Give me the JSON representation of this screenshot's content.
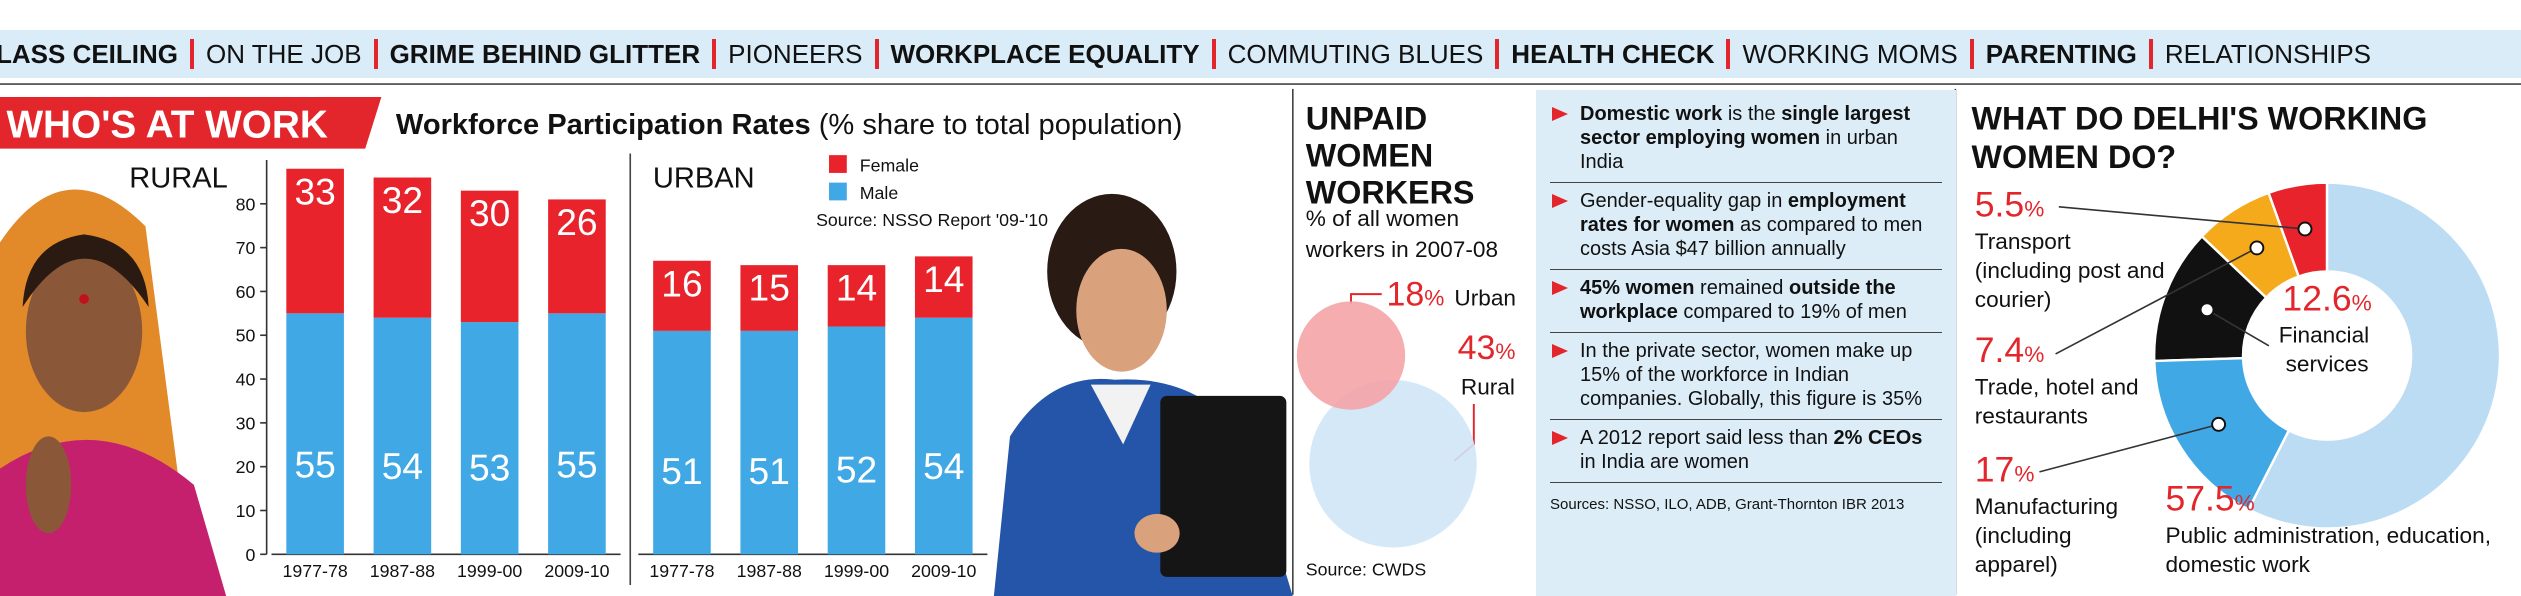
{
  "nav": {
    "items": [
      {
        "text": "LASS CEILING",
        "bold": true
      },
      {
        "text": "ON THE JOB",
        "bold": false
      },
      {
        "text": "GRIME BEHIND GLITTER",
        "bold": true
      },
      {
        "text": "PIONEERS",
        "bold": false
      },
      {
        "text": "WORKPLACE EQUALITY",
        "bold": true
      },
      {
        "text": "COMMUTING BLUES",
        "bold": false
      },
      {
        "text": "HEALTH CHECK",
        "bold": true
      },
      {
        "text": "WORKING MOMS",
        "bold": false
      },
      {
        "text": "PARENTING",
        "bold": true
      },
      {
        "text": "RELATIONSHIPS",
        "bold": false
      }
    ]
  },
  "header": {
    "banner": "WHO'S AT WORK",
    "title": "Workforce Participation Rates",
    "subtitle": "(% share to total population)"
  },
  "facts": {
    "items": [
      [
        {
          "text": "Domestic work",
          "bold": true
        },
        {
          "text": " is the ",
          "bold": false
        },
        {
          "text": "single largest sector employing women",
          "bold": true
        },
        {
          "text": " in urban India",
          "bold": false
        }
      ],
      [
        {
          "text": "Gender-equality gap in ",
          "bold": false
        },
        {
          "text": "employment rates for women",
          "bold": true
        },
        {
          "text": " as compared to men costs Asia $47 billion annually",
          "bold": false
        }
      ],
      [
        {
          "text": "45% women",
          "bold": true
        },
        {
          "text": " remained ",
          "bold": false
        },
        {
          "text": "outside the workplace",
          "bold": true
        },
        {
          "text": " compared to 19% of men",
          "bold": false
        }
      ],
      [
        {
          "text": "In the private sector, women make up 15% of the workforce in Indian companies. Globally, this figure is 35%",
          "bold": false
        }
      ],
      [
        {
          "text": "A 2012 report said less than ",
          "bold": false
        },
        {
          "text": "2% CEOs",
          "bold": true
        },
        {
          "text": " in India are women",
          "bold": false
        }
      ]
    ],
    "source": "Sources: NSSO, ILO, ADB, Grant-Thornton IBR 2013"
  },
  "chart_data": [
    {
      "type": "bar",
      "stacked": true,
      "title": "RURAL",
      "categories": [
        "1977-78",
        "1987-88",
        "1999-00",
        "2009-10"
      ],
      "series": [
        {
          "name": "Male",
          "color": "#41a8e6",
          "values": [
            55,
            54,
            53,
            55
          ]
        },
        {
          "name": "Female",
          "color": "#e8232b",
          "values": [
            33,
            32,
            30,
            26
          ]
        }
      ],
      "ylim": [
        0,
        90
      ],
      "yticks": [
        0,
        10,
        20,
        30,
        40,
        50,
        60,
        70,
        80
      ]
    },
    {
      "type": "bar",
      "stacked": true,
      "title": "URBAN",
      "categories": [
        "1977-78",
        "1987-88",
        "1999-00",
        "2009-10"
      ],
      "series": [
        {
          "name": "Male",
          "color": "#41a8e6",
          "values": [
            51,
            51,
            52,
            54
          ]
        },
        {
          "name": "Female",
          "color": "#e8232b",
          "values": [
            16,
            15,
            14,
            14
          ]
        }
      ],
      "ylim": [
        0,
        90
      ],
      "legend": true,
      "source": "Source: NSSO Report '09-'10"
    },
    {
      "type": "venn",
      "title": "UNPAID WOMEN WORKERS",
      "subtitle": "% of all women workers in 2007-08",
      "categories": [
        "Urban",
        "Rural"
      ],
      "values": [
        18,
        43
      ],
      "value_labels": [
        "18%",
        "43%"
      ],
      "colors": [
        "#f4a4a7",
        "#cfe6f7"
      ],
      "source": "Source: CWDS"
    },
    {
      "type": "pie",
      "donut": true,
      "title": "WHAT DO DELHI'S WORKING WOMEN DO?",
      "categories": [
        "Transport (including post and courier)",
        "Trade, hotel and restaurants",
        "Financial services",
        "Manufacturing (including apparel)",
        "Public administration, education, domestic work"
      ],
      "values": [
        5.5,
        7.4,
        12.6,
        17,
        57.5
      ],
      "value_labels": [
        "5.5%",
        "7.4%",
        "12.6%",
        "17%",
        "57.5%"
      ],
      "colors": [
        "#e8232b",
        "#f5aa1c",
        "#111111",
        "#41a8e6",
        "#bcdcf3"
      ]
    }
  ]
}
